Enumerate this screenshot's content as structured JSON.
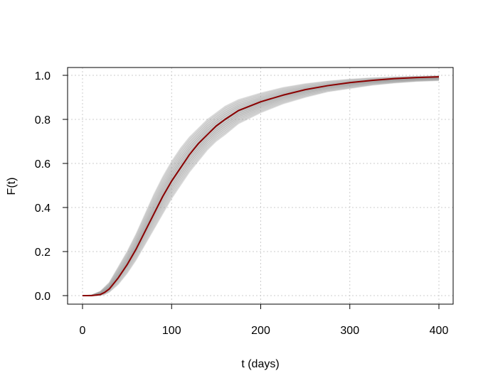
{
  "chart_data": {
    "type": "line",
    "title": "",
    "xlabel": "t (days)",
    "ylabel": "F(t)",
    "xlim": [
      0,
      400
    ],
    "ylim": [
      0,
      1
    ],
    "xticks": [
      0,
      100,
      200,
      300,
      400
    ],
    "yticks": [
      0.0,
      0.2,
      0.4,
      0.6,
      0.8,
      1.0
    ],
    "xtick_labels": [
      "0",
      "100",
      "200",
      "300",
      "400"
    ],
    "ytick_labels": [
      "0.0",
      "0.2",
      "0.4",
      "0.6",
      "0.8",
      "1.0"
    ],
    "grid": true,
    "legend": "none",
    "colors": {
      "mean_curve": "#8b0000",
      "sample_band": "#9a9a9a",
      "grid": "#cccccc"
    },
    "series": [
      {
        "role": "mean",
        "x": [
          0,
          10,
          20,
          25,
          30,
          40,
          50,
          60,
          70,
          80,
          90,
          100,
          110,
          120,
          130,
          140,
          150,
          160,
          175,
          200,
          225,
          250,
          275,
          300,
          325,
          350,
          375,
          400
        ],
        "y": [
          0.0,
          0.0,
          0.005,
          0.015,
          0.03,
          0.08,
          0.14,
          0.21,
          0.29,
          0.37,
          0.45,
          0.52,
          0.58,
          0.64,
          0.69,
          0.73,
          0.77,
          0.8,
          0.84,
          0.88,
          0.91,
          0.935,
          0.953,
          0.967,
          0.977,
          0.985,
          0.99,
          0.993
        ]
      },
      {
        "role": "band-lower",
        "x": [
          0,
          10,
          20,
          25,
          30,
          40,
          50,
          60,
          70,
          80,
          90,
          100,
          110,
          120,
          130,
          140,
          150,
          160,
          175,
          200,
          225,
          250,
          275,
          300,
          325,
          350,
          375,
          400
        ],
        "y": [
          0.0,
          0.0,
          0.0,
          0.005,
          0.015,
          0.05,
          0.1,
          0.16,
          0.23,
          0.3,
          0.37,
          0.44,
          0.5,
          0.56,
          0.61,
          0.66,
          0.7,
          0.73,
          0.78,
          0.83,
          0.87,
          0.9,
          0.925,
          0.94,
          0.955,
          0.965,
          0.972,
          0.976
        ]
      },
      {
        "role": "band-upper",
        "x": [
          0,
          10,
          20,
          25,
          30,
          40,
          50,
          60,
          70,
          80,
          90,
          100,
          110,
          120,
          130,
          140,
          150,
          160,
          175,
          200,
          225,
          250,
          275,
          300,
          325,
          350,
          375,
          400
        ],
        "y": [
          0.0,
          0.002,
          0.02,
          0.04,
          0.06,
          0.13,
          0.2,
          0.28,
          0.37,
          0.46,
          0.54,
          0.61,
          0.67,
          0.72,
          0.76,
          0.8,
          0.83,
          0.86,
          0.89,
          0.92,
          0.945,
          0.962,
          0.974,
          0.983,
          0.989,
          0.993,
          0.996,
          0.998
        ]
      }
    ]
  }
}
